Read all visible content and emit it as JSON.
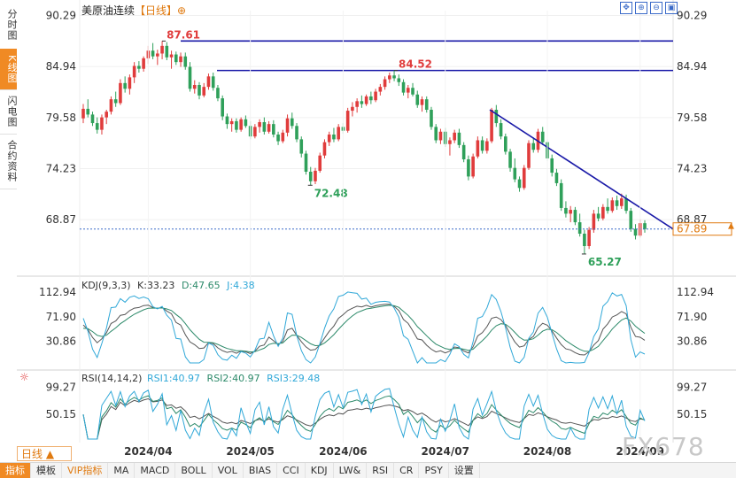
{
  "sidebar": {
    "tabs": [
      {
        "label": "分时图",
        "active": false
      },
      {
        "label": "K线图",
        "active": true
      },
      {
        "label": "闪电图",
        "active": false
      },
      {
        "label": "合约资料",
        "active": false
      }
    ]
  },
  "header": {
    "instrument": "美原油连续",
    "period_tag": "【日线】",
    "add_symbol": "⊕",
    "tools": [
      "move-icon",
      "zoom-in-icon",
      "zoom-out-icon",
      "fit-icon"
    ]
  },
  "toolbar": {
    "period_label": "日线 ▲",
    "items": [
      "指标",
      "模板",
      "VIP指标",
      "MA",
      "MACD",
      "BOLL",
      "VOL",
      "BIAS",
      "CCI",
      "KDJ",
      "LW&",
      "RSI",
      "CR",
      "PSY",
      "设置"
    ]
  },
  "watermark": "FX678",
  "colors": {
    "up": "#e03c3c",
    "down": "#2fa05a",
    "trend": "#1a1aa8",
    "last": "#e07a10",
    "kdj_k": "#555555",
    "kdj_d": "#2d8a6a",
    "kdj_j": "#30a8d8",
    "rsi1": "#555555",
    "rsi2": "#2d8a6a",
    "rsi3": "#30a8d8"
  },
  "chart_data": [
    {
      "type": "candlestick",
      "title": "美原油连续【日线】",
      "x_ticks": [
        "2024/04",
        "2024/05",
        "2024/06",
        "2024/07",
        "2024/08",
        "2024/09"
      ],
      "y_ticks": [
        90.29,
        84.94,
        79.58,
        74.23,
        68.87
      ],
      "ylim": [
        63.5,
        90.8
      ],
      "annotations": [
        {
          "label": "87.61",
          "value": 87.61,
          "kind": "high"
        },
        {
          "label": "84.52",
          "value": 84.52,
          "kind": "high"
        },
        {
          "label": "72.48",
          "value": 72.48,
          "kind": "low"
        },
        {
          "label": "65.27",
          "value": 65.27,
          "kind": "low"
        }
      ],
      "horizontal_lines": [
        87.61,
        84.52
      ],
      "trendline": {
        "from": {
          "date": "2024/07/26",
          "value": 80.4
        },
        "to": {
          "date": "2024/10/01",
          "value": 67.89
        }
      },
      "last_price": {
        "label": "67.89",
        "value": 67.89
      },
      "ohlc": [
        [
          79.5,
          81.0,
          79.0,
          80.5
        ],
        [
          80.5,
          81.5,
          79.6,
          79.9
        ],
        [
          79.9,
          80.2,
          78.7,
          79.0
        ],
        [
          79.0,
          79.6,
          77.9,
          78.3
        ],
        [
          78.3,
          79.9,
          77.8,
          79.6
        ],
        [
          79.6,
          80.4,
          78.9,
          80.2
        ],
        [
          80.2,
          81.8,
          79.9,
          81.5
        ],
        [
          81.5,
          82.3,
          80.7,
          81.1
        ],
        [
          81.1,
          83.6,
          80.9,
          83.2
        ],
        [
          83.2,
          83.9,
          82.2,
          82.6
        ],
        [
          82.6,
          84.1,
          82.0,
          83.8
        ],
        [
          83.8,
          85.4,
          83.2,
          85.0
        ],
        [
          85.0,
          85.5,
          84.3,
          84.7
        ],
        [
          84.7,
          86.0,
          84.4,
          85.8
        ],
        [
          85.8,
          87.1,
          85.2,
          86.6
        ],
        [
          86.6,
          87.4,
          85.7,
          86.0
        ],
        [
          86.0,
          86.7,
          85.1,
          86.3
        ],
        [
          86.3,
          87.61,
          85.7,
          87.1
        ],
        [
          87.1,
          87.5,
          85.6,
          85.9
        ],
        [
          85.9,
          86.6,
          84.7,
          86.2
        ],
        [
          86.2,
          86.5,
          85.1,
          85.4
        ],
        [
          85.4,
          86.4,
          84.9,
          86.0
        ],
        [
          86.0,
          86.4,
          84.6,
          84.9
        ],
        [
          84.9,
          85.4,
          82.3,
          82.6
        ],
        [
          82.6,
          83.5,
          82.1,
          83.0
        ],
        [
          83.0,
          83.3,
          81.5,
          81.9
        ],
        [
          81.9,
          83.2,
          81.7,
          82.8
        ],
        [
          82.8,
          84.2,
          82.5,
          83.9
        ],
        [
          83.9,
          84.3,
          82.4,
          82.7
        ],
        [
          82.7,
          83.0,
          81.3,
          81.6
        ],
        [
          81.6,
          81.9,
          79.3,
          79.7
        ],
        [
          79.7,
          80.0,
          78.4,
          78.9
        ],
        [
          78.9,
          79.5,
          78.1,
          79.2
        ],
        [
          79.2,
          79.5,
          78.0,
          78.3
        ],
        [
          78.3,
          79.6,
          78.1,
          79.4
        ],
        [
          79.4,
          79.8,
          78.5,
          78.7
        ],
        [
          78.7,
          79.2,
          77.3,
          77.6
        ],
        [
          77.6,
          78.9,
          77.4,
          78.6
        ],
        [
          78.6,
          79.4,
          78.0,
          79.1
        ],
        [
          79.1,
          79.6,
          77.8,
          78.1
        ],
        [
          78.1,
          79.2,
          77.9,
          78.9
        ],
        [
          78.9,
          79.3,
          77.5,
          77.8
        ],
        [
          77.8,
          78.1,
          76.7,
          77.1
        ],
        [
          77.1,
          78.3,
          76.9,
          78.0
        ],
        [
          78.0,
          79.9,
          77.6,
          79.5
        ],
        [
          79.5,
          80.1,
          78.4,
          78.7
        ],
        [
          78.7,
          79.0,
          77.0,
          77.3
        ],
        [
          77.3,
          77.6,
          75.4,
          75.8
        ],
        [
          75.8,
          76.1,
          73.6,
          73.9
        ],
        [
          73.9,
          74.4,
          72.48,
          72.9
        ],
        [
          72.9,
          74.3,
          72.6,
          74.0
        ],
        [
          74.0,
          75.9,
          73.8,
          75.6
        ],
        [
          75.6,
          77.3,
          75.3,
          77.0
        ],
        [
          77.0,
          78.1,
          76.6,
          77.8
        ],
        [
          77.8,
          78.5,
          77.0,
          77.3
        ],
        [
          77.3,
          78.9,
          77.1,
          78.6
        ],
        [
          78.6,
          79.0,
          77.9,
          78.2
        ],
        [
          78.2,
          80.6,
          78.0,
          80.3
        ],
        [
          80.3,
          81.2,
          79.7,
          80.7
        ],
        [
          80.7,
          81.6,
          80.1,
          81.3
        ],
        [
          81.3,
          81.9,
          80.6,
          81.0
        ],
        [
          81.0,
          82.0,
          80.8,
          81.8
        ],
        [
          81.8,
          82.3,
          81.0,
          81.4
        ],
        [
          81.4,
          82.6,
          81.2,
          82.3
        ],
        [
          82.3,
          83.1,
          81.9,
          82.8
        ],
        [
          82.8,
          83.9,
          82.5,
          83.6
        ],
        [
          83.6,
          84.3,
          83.2,
          84.0
        ],
        [
          84.0,
          84.52,
          83.4,
          83.7
        ],
        [
          83.7,
          84.1,
          82.9,
          83.3
        ],
        [
          83.3,
          83.6,
          81.9,
          82.2
        ],
        [
          82.2,
          83.0,
          81.6,
          82.7
        ],
        [
          82.7,
          83.2,
          81.8,
          82.0
        ],
        [
          82.0,
          82.4,
          80.6,
          80.9
        ],
        [
          80.9,
          81.8,
          80.2,
          81.5
        ],
        [
          81.5,
          81.8,
          80.1,
          80.4
        ],
        [
          80.4,
          80.7,
          78.3,
          78.6
        ],
        [
          78.6,
          78.9,
          76.9,
          77.2
        ],
        [
          77.2,
          78.4,
          76.8,
          78.1
        ],
        [
          78.1,
          78.5,
          76.5,
          76.8
        ],
        [
          76.8,
          77.5,
          75.6,
          77.2
        ],
        [
          77.2,
          78.3,
          76.9,
          78.0
        ],
        [
          78.0,
          78.4,
          76.4,
          76.7
        ],
        [
          76.7,
          77.0,
          74.9,
          75.2
        ],
        [
          75.2,
          75.6,
          73.0,
          73.4
        ],
        [
          73.4,
          75.8,
          73.2,
          75.5
        ],
        [
          75.5,
          77.6,
          75.3,
          77.2
        ],
        [
          77.2,
          77.6,
          75.8,
          76.1
        ],
        [
          76.1,
          77.4,
          75.8,
          77.1
        ],
        [
          77.1,
          80.6,
          76.9,
          80.4
        ],
        [
          80.4,
          80.9,
          78.6,
          79.0
        ],
        [
          79.0,
          79.4,
          77.3,
          77.6
        ],
        [
          77.6,
          77.9,
          75.7,
          76.0
        ],
        [
          76.0,
          76.3,
          73.9,
          74.3
        ],
        [
          74.3,
          75.3,
          72.8,
          73.1
        ],
        [
          73.1,
          73.4,
          71.8,
          72.2
        ],
        [
          72.2,
          74.6,
          72.0,
          74.3
        ],
        [
          74.3,
          77.2,
          74.1,
          76.9
        ],
        [
          76.9,
          77.5,
          75.9,
          76.2
        ],
        [
          76.2,
          78.4,
          75.9,
          78.1
        ],
        [
          78.1,
          78.6,
          76.7,
          77.0
        ],
        [
          77.0,
          77.3,
          75.0,
          75.3
        ],
        [
          75.3,
          75.7,
          73.4,
          73.8
        ],
        [
          73.8,
          74.2,
          72.4,
          72.7
        ],
        [
          72.7,
          73.1,
          69.8,
          70.1
        ],
        [
          70.1,
          70.8,
          69.1,
          69.5
        ],
        [
          69.5,
          70.3,
          68.6,
          69.9
        ],
        [
          69.9,
          70.2,
          68.3,
          68.6
        ],
        [
          68.6,
          69.5,
          67.1,
          67.4
        ],
        [
          67.4,
          67.8,
          65.27,
          66.1
        ],
        [
          66.1,
          68.1,
          65.8,
          67.8
        ],
        [
          67.8,
          69.9,
          67.5,
          69.5
        ],
        [
          69.5,
          70.2,
          68.7,
          69.0
        ],
        [
          69.0,
          70.5,
          68.8,
          70.2
        ],
        [
          70.2,
          71.1,
          69.5,
          69.8
        ],
        [
          69.8,
          71.2,
          69.6,
          70.9
        ],
        [
          70.9,
          71.4,
          69.9,
          70.3
        ],
        [
          70.3,
          71.6,
          70.0,
          71.1
        ],
        [
          71.1,
          71.5,
          69.5,
          69.8
        ],
        [
          69.8,
          70.1,
          67.6,
          67.9
        ],
        [
          67.9,
          68.4,
          66.8,
          67.2
        ],
        [
          67.2,
          68.9,
          67.0,
          68.5
        ],
        [
          68.5,
          68.8,
          67.5,
          67.89
        ]
      ]
    },
    {
      "type": "line",
      "title": "KDJ(9,3,3)",
      "series": [
        {
          "name": "K",
          "last": "33.23"
        },
        {
          "name": "D",
          "last": "47.65"
        },
        {
          "name": "J",
          "last": "4.38"
        }
      ],
      "y_ticks": [
        112.94,
        71.9,
        30.86
      ],
      "ylim": [
        -5,
        125
      ]
    },
    {
      "type": "line",
      "title": "RSI(14,14,2)",
      "series": [
        {
          "name": "RSI1",
          "last": "40.97"
        },
        {
          "name": "RSI2",
          "last": "40.97"
        },
        {
          "name": "RSI3",
          "last": "29.48"
        }
      ],
      "y_ticks": [
        99.27,
        50.15
      ],
      "ylim": [
        5,
        115
      ]
    }
  ]
}
